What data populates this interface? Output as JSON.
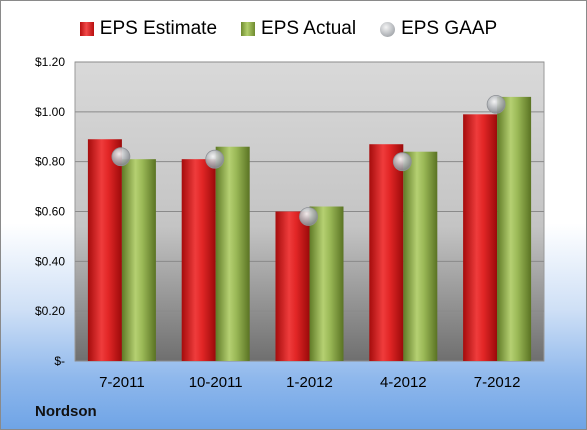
{
  "chart_data": {
    "type": "bar",
    "categories": [
      "7-2011",
      "10-2011",
      "1-2012",
      "4-2012",
      "7-2012"
    ],
    "series": [
      {
        "name": "EPS Estimate",
        "values": [
          0.89,
          0.81,
          0.6,
          0.87,
          0.99
        ],
        "color": "#d42222"
      },
      {
        "name": "EPS Actual",
        "values": [
          0.81,
          0.86,
          0.62,
          0.84,
          1.06
        ],
        "color": "#93b049"
      }
    ],
    "gaap": {
      "name": "EPS GAAP",
      "values": [
        0.82,
        0.81,
        0.58,
        0.8,
        1.03
      ],
      "color": "#b3b6ba"
    },
    "yticks": [
      {
        "value": 0.0,
        "label": "$-"
      },
      {
        "value": 0.2,
        "label": "$0.20"
      },
      {
        "value": 0.4,
        "label": "$0.40"
      },
      {
        "value": 0.6,
        "label": "$0.60"
      },
      {
        "value": 0.8,
        "label": "$0.80"
      },
      {
        "value": 1.0,
        "label": "$1.00"
      },
      {
        "value": 1.2,
        "label": "$1.20"
      }
    ],
    "ylim": [
      0,
      1.2
    ],
    "grid": true,
    "legend_position": "top",
    "title": "",
    "xlabel": "",
    "ylabel": ""
  },
  "brand": "Nordson"
}
